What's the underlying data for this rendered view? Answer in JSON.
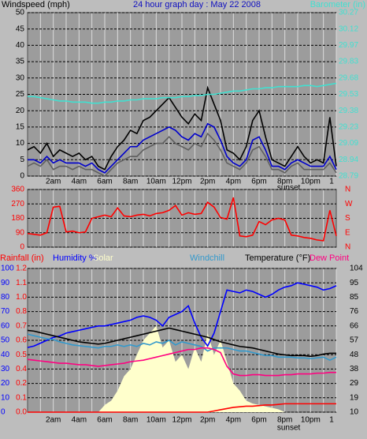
{
  "chart_data": [
    {
      "type": "line",
      "title": "24 hour graph day : May 22 2008",
      "ylabel": "Windspeed (mph)",
      "y2label": "Barometer (in)",
      "xlim": [
        0,
        24
      ],
      "xticks": [
        {
          "value": 2,
          "label": "2am"
        },
        {
          "value": 4,
          "label": "4am"
        },
        {
          "value": 6,
          "label": "6am"
        },
        {
          "value": 8,
          "label": "8am"
        },
        {
          "value": 10,
          "label": "10am"
        },
        {
          "value": 12,
          "label": "12pm"
        },
        {
          "value": 14,
          "label": "2pm"
        },
        {
          "value": 16,
          "label": "4pm"
        },
        {
          "value": 18,
          "label": "6pm"
        },
        {
          "value": 20,
          "label": "8pm"
        },
        {
          "value": 22,
          "label": "10pm"
        },
        {
          "value": 24,
          "label": "1"
        }
      ],
      "minor_xticks": [
        1,
        3,
        5,
        7,
        9,
        11,
        13,
        15,
        17,
        19,
        21,
        23
      ],
      "annotations": [
        {
          "text": "sunset",
          "x": 20.3
        }
      ],
      "ylim": [
        0,
        50
      ],
      "yticks": [
        0,
        5,
        10,
        15,
        20,
        25,
        30,
        35,
        40,
        45,
        50
      ],
      "y2lim": [
        28.79,
        30.27
      ],
      "y2ticks": [
        28.79,
        {
          "value": 28.938,
          "label": "28.94"
        },
        {
          "value": 29.086,
          "label": "29.09"
        },
        {
          "value": 29.234,
          "label": "29.23"
        },
        {
          "value": 29.382,
          "label": "29.38"
        },
        29.53,
        {
          "value": 29.678,
          "label": "29.68"
        },
        {
          "value": 29.826,
          "label": "29.83"
        },
        {
          "value": 29.974,
          "label": "29.97"
        },
        {
          "value": 30.122,
          "label": "30.12"
        },
        30.27
      ],
      "grid": true,
      "x": [
        0,
        0.5,
        1,
        1.5,
        2,
        2.5,
        3,
        3.5,
        4,
        4.5,
        5,
        5.5,
        6,
        6.5,
        7,
        7.5,
        8,
        8.5,
        9,
        9.5,
        10,
        10.5,
        11,
        11.5,
        12,
        12.5,
        13,
        13.5,
        14,
        14.5,
        15,
        15.5,
        16,
        16.5,
        17,
        17.5,
        18,
        18.5,
        19,
        19.5,
        20,
        20.5,
        21,
        21.5,
        22,
        22.5,
        23,
        23.5,
        24
      ],
      "series": [
        {
          "color": "#606060",
          "values": [
            3,
            4,
            3,
            5,
            2,
            3,
            3,
            2,
            3,
            2,
            2,
            1,
            0,
            2,
            4,
            5,
            6,
            6,
            8,
            9,
            10,
            10,
            12,
            10,
            9,
            8,
            10,
            9,
            13,
            11,
            8,
            4,
            3,
            2,
            4,
            8,
            9,
            6,
            2,
            2,
            1,
            3,
            4,
            2,
            2,
            2,
            2,
            4,
            1
          ]
        },
        {
          "color": "#000000",
          "values": [
            8,
            9,
            7,
            10,
            6,
            8,
            7,
            6,
            7,
            5,
            6,
            3,
            2,
            6,
            9,
            11,
            14,
            13,
            17,
            18,
            20,
            22,
            24,
            21,
            18,
            16,
            19,
            17,
            27,
            22,
            17,
            8,
            7,
            5,
            9,
            17,
            20,
            12,
            5,
            4,
            3,
            6,
            9,
            6,
            4,
            5,
            4,
            18,
            3
          ]
        },
        {
          "color": "#0000cc",
          "values": [
            5,
            5,
            4,
            6,
            4,
            5,
            4,
            4,
            4,
            3,
            4,
            2,
            1,
            3,
            5,
            7,
            9,
            9,
            11,
            12,
            13,
            14,
            15,
            14,
            12,
            11,
            13,
            12,
            16,
            15,
            11,
            6,
            4,
            3,
            5,
            11,
            12,
            8,
            3,
            3,
            2,
            4,
            5,
            4,
            3,
            3,
            3,
            6,
            2
          ]
        },
        {
          "color": "#40e0d0",
          "axis": "y2",
          "values": [
            29.51,
            29.51,
            29.5,
            29.49,
            29.48,
            29.47,
            29.47,
            29.46,
            29.46,
            29.46,
            29.45,
            29.45,
            29.46,
            29.46,
            29.47,
            29.47,
            29.48,
            29.48,
            29.49,
            29.49,
            29.49,
            29.5,
            29.5,
            29.5,
            29.51,
            29.51,
            29.52,
            29.52,
            29.53,
            29.53,
            29.54,
            29.55,
            29.56,
            29.56,
            29.57,
            29.58,
            29.58,
            29.59,
            29.59,
            29.6,
            29.6,
            29.6,
            29.6,
            29.61,
            29.61,
            29.6,
            29.61,
            29.62,
            29.63
          ]
        }
      ]
    },
    {
      "type": "line",
      "xlim": [
        0,
        24
      ],
      "xticks": [
        2,
        4,
        6,
        8,
        10,
        12,
        14,
        16,
        18,
        20,
        22
      ],
      "minor_xticks": [
        1,
        3,
        5,
        7,
        9,
        11,
        13,
        15,
        17,
        19,
        21,
        23
      ],
      "ylim": [
        0,
        360
      ],
      "yticks": [
        0,
        90,
        180,
        270,
        360
      ],
      "y2lim": [
        0,
        360
      ],
      "y2ticks": [
        {
          "value": 0,
          "label": "N"
        },
        {
          "value": 90,
          "label": "E"
        },
        {
          "value": 180,
          "label": "S"
        },
        {
          "value": 270,
          "label": "W"
        },
        {
          "value": 360,
          "label": "N"
        }
      ],
      "grid": true,
      "x": [
        0,
        0.5,
        1,
        1.5,
        2,
        2.5,
        3,
        3.5,
        4,
        4.5,
        5,
        5.5,
        6,
        6.5,
        7,
        7.5,
        8,
        8.5,
        9,
        9.5,
        10,
        10.5,
        11,
        11.5,
        12,
        12.5,
        13,
        13.5,
        14,
        14.5,
        15,
        15.5,
        16,
        16.5,
        17,
        17.5,
        18,
        18.5,
        19,
        19.5,
        20,
        20.5,
        21,
        21.5,
        22,
        22.5,
        23,
        23.5,
        24
      ],
      "series": [
        {
          "color": "#ff0000",
          "values": [
            85,
            80,
            75,
            90,
            250,
            255,
            95,
            100,
            90,
            95,
            180,
            190,
            200,
            190,
            245,
            195,
            190,
            200,
            205,
            195,
            210,
            215,
            230,
            260,
            200,
            215,
            205,
            210,
            280,
            250,
            185,
            175,
            310,
            70,
            65,
            75,
            160,
            140,
            170,
            180,
            170,
            75,
            70,
            60,
            55,
            45,
            40,
            230,
            70
          ]
        }
      ]
    },
    {
      "type": "line",
      "xlim": [
        0,
        24
      ],
      "xticks": [
        {
          "value": 2,
          "label": "2am"
        },
        {
          "value": 4,
          "label": "4am"
        },
        {
          "value": 6,
          "label": "6am"
        },
        {
          "value": 8,
          "label": "8am"
        },
        {
          "value": 10,
          "label": "10am"
        },
        {
          "value": 12,
          "label": "12pm"
        },
        {
          "value": 14,
          "label": "2pm"
        },
        {
          "value": 16,
          "label": "4pm"
        },
        {
          "value": 18,
          "label": "6pm"
        },
        {
          "value": 20,
          "label": "8pm"
        },
        {
          "value": 22,
          "label": "10pm"
        },
        {
          "value": 24,
          "label": "1"
        }
      ],
      "minor_xticks": [
        1,
        3,
        5,
        7,
        9,
        11,
        13,
        15,
        17,
        19,
        21,
        23
      ],
      "annotations": [
        {
          "text": "sunset",
          "x": 20.3
        }
      ],
      "ylim": [
        0,
        100
      ],
      "yticks": [
        0,
        10,
        20,
        30,
        40,
        50,
        60,
        70,
        80,
        90,
        100
      ],
      "rainlim": [
        0,
        1.2
      ],
      "rainticks": [
        {
          "value": 0,
          "label": "0.0"
        },
        {
          "value": 0.12,
          "label": "0.1"
        },
        {
          "value": 0.24,
          "label": "0.2"
        },
        {
          "value": 0.36,
          "label": "0.4"
        },
        {
          "value": 0.48,
          "label": "0.5"
        },
        {
          "value": 0.6,
          "label": "0.6"
        },
        {
          "value": 0.72,
          "label": "0.7"
        },
        {
          "value": 0.84,
          "label": "0.8"
        },
        {
          "value": 0.96,
          "label": "1.0"
        },
        {
          "value": 1.08,
          "label": "1.1"
        },
        {
          "value": 1.2,
          "label": "1.2"
        }
      ],
      "y2lim": [
        10,
        104
      ],
      "y2ticks": [
        10,
        {
          "value": 19.4,
          "label": "19"
        },
        {
          "value": 28.8,
          "label": "29"
        },
        {
          "value": 38.2,
          "label": "38"
        },
        {
          "value": 47.6,
          "label": "48"
        },
        57,
        {
          "value": 66.4,
          "label": "66"
        },
        {
          "value": 75.8,
          "label": "76"
        },
        {
          "value": 85.2,
          "label": "85"
        },
        {
          "value": 94.6,
          "label": "95"
        },
        104
      ],
      "grid": true,
      "x": [
        0,
        0.5,
        1,
        1.5,
        2,
        2.5,
        3,
        3.5,
        4,
        4.5,
        5,
        5.5,
        6,
        6.5,
        7,
        7.5,
        8,
        8.5,
        9,
        9.5,
        10,
        10.5,
        11,
        11.5,
        12,
        12.5,
        13,
        13.5,
        14,
        14.5,
        15,
        15.5,
        16,
        16.5,
        17,
        17.5,
        18,
        18.5,
        19,
        19.5,
        20,
        20.5,
        21,
        21.5,
        22,
        22.5,
        23,
        23.5,
        24
      ],
      "series": [
        {
          "name": "Rainfall (in)",
          "color": "#ff0000",
          "axis": "rain",
          "values": [
            0,
            0,
            0,
            0,
            0,
            0,
            0,
            0,
            0,
            0,
            0,
            0,
            0,
            0,
            0,
            0,
            0,
            0,
            0,
            0,
            0,
            0,
            0,
            0,
            0,
            0,
            0,
            0,
            0,
            0.01,
            0.02,
            0.03,
            0.04,
            0.045,
            0.05,
            0.05,
            0.055,
            0.06,
            0.06,
            0.065,
            0.07,
            0.07,
            0.07,
            0.07,
            0.07,
            0.07,
            0.07,
            0.07,
            0.07
          ]
        },
        {
          "name": "Humidity %",
          "color": "#0000ff",
          "axis": "y",
          "values": [
            45,
            46,
            48,
            50,
            52,
            53,
            55,
            56,
            57,
            58,
            59,
            60,
            60,
            61,
            62,
            63,
            64,
            66,
            67,
            66,
            64,
            60,
            66,
            68,
            70,
            74,
            62,
            52,
            46,
            55,
            70,
            85,
            84,
            83,
            85,
            84,
            82,
            80,
            82,
            85,
            87,
            88,
            90,
            89,
            88,
            87,
            85,
            86,
            88
          ]
        },
        {
          "name": "Solar",
          "color": "#ffffcc",
          "axis": "y",
          "style": "area",
          "values": [
            0,
            0,
            0,
            0,
            0,
            0,
            0,
            0,
            0,
            0,
            0,
            0,
            5,
            8,
            15,
            25,
            30,
            40,
            50,
            55,
            60,
            45,
            50,
            35,
            40,
            30,
            45,
            35,
            55,
            40,
            50,
            35,
            20,
            15,
            8,
            6,
            5,
            4,
            3,
            2,
            0,
            0,
            0,
            0,
            0,
            0,
            0,
            0,
            0
          ]
        },
        {
          "name": "Windchill",
          "color": "#3399cc",
          "axis": "y2",
          "values": [
            61,
            60,
            59,
            58,
            57.5,
            56,
            55,
            54,
            53.5,
            53,
            52.5,
            52,
            53,
            53,
            54,
            53,
            54,
            53,
            55,
            54,
            56,
            55,
            57,
            54,
            56,
            55,
            54,
            53,
            50,
            52,
            52,
            52,
            51,
            50,
            50,
            49,
            48,
            47,
            47,
            46,
            46,
            46,
            45.5,
            45.5,
            45,
            45.5,
            46,
            44,
            46
          ]
        },
        {
          "name": "Temperature (°F)",
          "color": "#000000",
          "axis": "y2",
          "values": [
            63.5,
            63,
            62,
            61,
            60,
            59,
            58,
            57,
            56,
            55.5,
            55,
            54.5,
            55,
            56,
            57,
            58,
            59,
            60,
            61,
            62,
            63,
            64,
            65,
            64,
            63,
            62,
            61,
            60,
            59,
            57.5,
            56,
            55,
            54,
            53,
            52.5,
            52,
            51,
            50,
            49,
            48,
            47.5,
            47,
            47,
            47,
            46.5,
            47,
            48,
            48.5,
            48.5
          ]
        },
        {
          "name": "Dew Point",
          "color": "#ff0080",
          "axis": "y2",
          "values": [
            44.5,
            44,
            43.5,
            43,
            42.5,
            42,
            42,
            41.5,
            41,
            41,
            40.5,
            40,
            40.5,
            41,
            41.5,
            42,
            43,
            43.5,
            44,
            45,
            46,
            47,
            48,
            49,
            50,
            51,
            51,
            52,
            52,
            51,
            49,
            40,
            35,
            34,
            34,
            34.5,
            34.5,
            34,
            34,
            34,
            34.5,
            34.5,
            35,
            35,
            35,
            35.5,
            35.5,
            36,
            36
          ]
        }
      ]
    }
  ]
}
